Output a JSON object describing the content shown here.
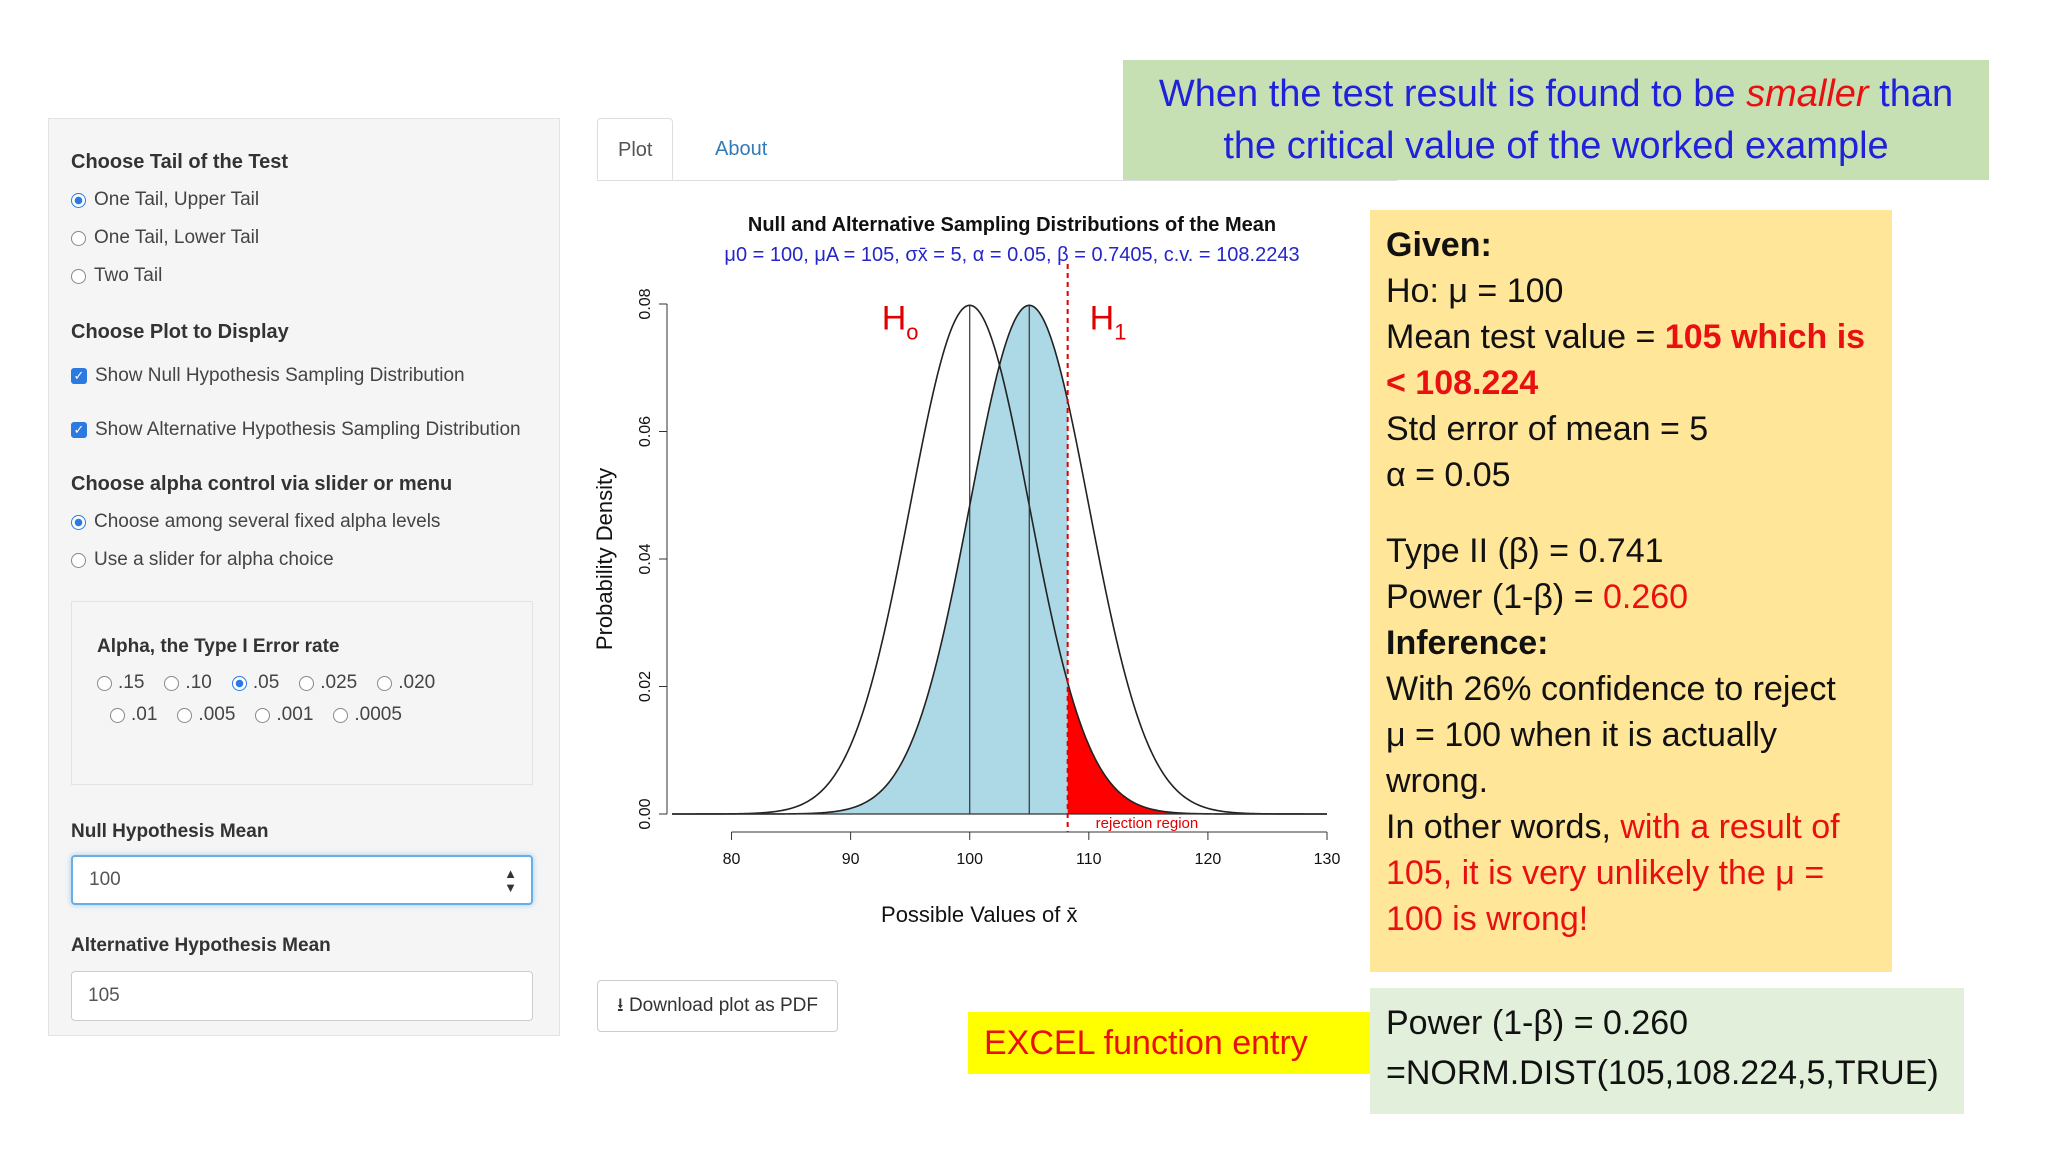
{
  "sidebar": {
    "tail_heading": "Choose Tail of the Test",
    "tail_options": [
      "One Tail, Upper Tail",
      "One Tail, Lower Tail",
      "Two Tail"
    ],
    "tail_selected": 0,
    "plot_heading": "Choose Plot to Display",
    "plot_checks": [
      "Show Null Hypothesis Sampling Distribution",
      "Show Alternative Hypothesis Sampling Distribution"
    ],
    "alpha_control_heading": "Choose alpha control via slider or menu",
    "alpha_control_options": [
      "Choose among several fixed alpha levels",
      "Use a slider for alpha choice"
    ],
    "alpha_control_selected": 0,
    "alpha_heading": "Alpha, the Type I Error rate",
    "alpha_levels_row1": [
      ".15",
      ".10",
      ".05",
      ".025",
      ".020"
    ],
    "alpha_levels_row2": [
      ".01",
      ".005",
      ".001",
      ".0005"
    ],
    "alpha_selected": ".05",
    "null_mean_label": "Null Hypothesis Mean",
    "null_mean_value": "100",
    "alt_mean_label": "Alternative Hypothesis Mean",
    "alt_mean_value": "105"
  },
  "tabs": {
    "plot": "Plot",
    "about": "About"
  },
  "download_label": "Download plot as PDF",
  "callout_top": {
    "line1_a": "When the test result is found to be ",
    "line1_em": "smaller",
    "line1_b": " than",
    "line2": "the critical value of the worked example"
  },
  "notes": {
    "given": "Given:",
    "ho": "Ho:  μ = 100",
    "mean_test_a": "Mean test value = ",
    "mean_test_b": "105 which is",
    "mean_test_c": "< 108.224",
    "std_err": "Std error of mean = 5",
    "alpha": "α =  0.05",
    "type2": "Type II (β) = 0.741",
    "power_a": "Power (1-β) = ",
    "power_b": "0.260",
    "inference": "Inference:",
    "inf1": "With 26% confidence to reject",
    "inf2": "μ = 100 when it is actually",
    "inf3": "wrong.",
    "other_a": "In other words, ",
    "other_b": "with a result of",
    "other_c": "105, it is very unlikely the μ =",
    "other_d": "100 is wrong!"
  },
  "excel": {
    "label": "EXCEL function entry",
    "power": "Power (1-β) = 0.260",
    "formula": "=NORM.DIST(105,108.224,5,TRUE)"
  },
  "chart_data": {
    "type": "line",
    "title": "Null and Alternative Sampling Distributions of the Mean",
    "subtitle": "μ0 = 100, μA = 105, σx̄ = 5, α = 0.05, β = 0.7405,  c.v.  = 108.2243",
    "xlabel": "Possible Values of x̄",
    "ylabel": "Probability Density",
    "xticks": [
      "80",
      "90",
      "100",
      "110",
      "120",
      "130"
    ],
    "yticks": [
      "0.00",
      "0.02",
      "0.04",
      "0.06",
      "0.08"
    ],
    "xlim": [
      75,
      130
    ],
    "ylim": [
      0,
      0.08
    ],
    "series": [
      {
        "name": "Ho",
        "mean": 100,
        "sd": 5
      },
      {
        "name": "H1",
        "mean": 105,
        "sd": 5
      }
    ],
    "critical_value": 108.2243,
    "region_label": "rejection region",
    "colors": {
      "beta_fill": "#add8e6",
      "alpha_fill": "#ff0000",
      "curve": "#222222",
      "cv_line": "#e00000",
      "subtitle": "#2525c8"
    }
  }
}
